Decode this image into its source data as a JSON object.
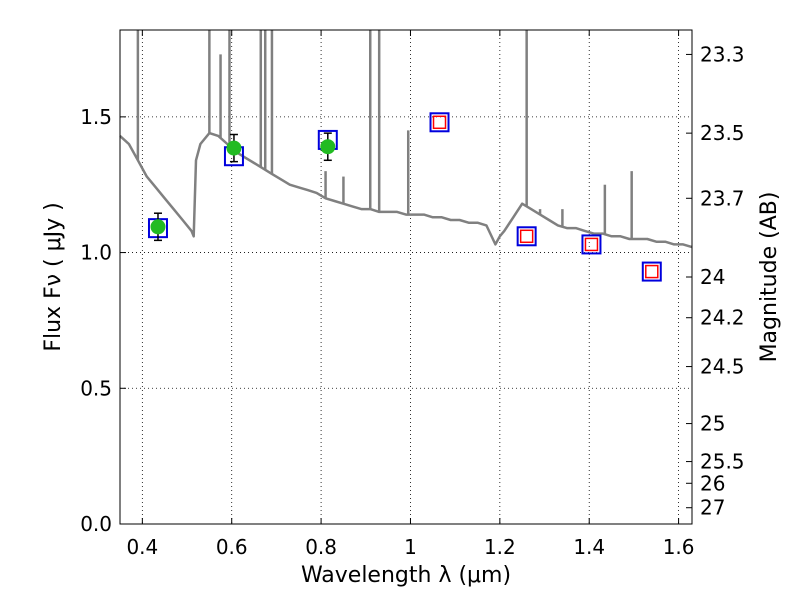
{
  "chart_data": {
    "type": "scatter",
    "title": "",
    "xlabel": "Wavelength  λ (μm)",
    "ylabel": "Flux  Fν  ( μJy )",
    "y2label": "Magnitude (AB)",
    "xlim": [
      0.35,
      1.63
    ],
    "ylim": [
      0.0,
      1.82
    ],
    "x_ticks": [
      0.4,
      0.6,
      0.8,
      1.0,
      1.2,
      1.4,
      1.6
    ],
    "x_tick_labels": [
      "0.4",
      "0.6",
      "0.8",
      "1",
      "1.2",
      "1.4",
      "1.6"
    ],
    "y_ticks": [
      0.0,
      0.5,
      1.0,
      1.5
    ],
    "y_tick_labels": [
      "0.0",
      "0.5",
      "1.0",
      "1.5"
    ],
    "y2_ticks": [
      {
        "flux": 1.73,
        "label": "23.3"
      },
      {
        "flux": 1.44,
        "label": "23.5"
      },
      {
        "flux": 1.2,
        "label": "23.7"
      },
      {
        "flux": 0.91,
        "label": "24"
      },
      {
        "flux": 0.76,
        "label": "24.2"
      },
      {
        "flux": 0.58,
        "label": "24.5"
      },
      {
        "flux": 0.37,
        "label": "25"
      },
      {
        "flux": 0.23,
        "label": "25.5"
      },
      {
        "flux": 0.15,
        "label": "26"
      },
      {
        "flux": 0.06,
        "label": "27"
      }
    ],
    "grid": true,
    "colors": {
      "model": "#808080",
      "observed": "#22bb22",
      "model_box": "#0000dd",
      "synthetic_box": "#ff0000"
    },
    "model_spectrum": {
      "x": [
        0.35,
        0.37,
        0.39,
        0.41,
        0.43,
        0.45,
        0.47,
        0.49,
        0.51,
        0.515,
        0.52,
        0.53,
        0.55,
        0.57,
        0.59,
        0.61,
        0.63,
        0.65,
        0.67,
        0.69,
        0.71,
        0.73,
        0.75,
        0.77,
        0.79,
        0.81,
        0.83,
        0.85,
        0.87,
        0.89,
        0.91,
        0.93,
        0.95,
        0.97,
        0.99,
        1.01,
        1.03,
        1.05,
        1.07,
        1.09,
        1.11,
        1.13,
        1.15,
        1.17,
        1.19,
        1.2,
        1.21,
        1.23,
        1.25,
        1.27,
        1.29,
        1.31,
        1.33,
        1.35,
        1.37,
        1.39,
        1.41,
        1.43,
        1.45,
        1.47,
        1.49,
        1.51,
        1.53,
        1.55,
        1.57,
        1.59,
        1.61,
        1.63
      ],
      "y": [
        1.43,
        1.4,
        1.34,
        1.28,
        1.24,
        1.2,
        1.16,
        1.12,
        1.08,
        1.06,
        1.34,
        1.4,
        1.44,
        1.43,
        1.4,
        1.37,
        1.35,
        1.33,
        1.31,
        1.29,
        1.27,
        1.25,
        1.24,
        1.23,
        1.22,
        1.2,
        1.19,
        1.18,
        1.17,
        1.16,
        1.16,
        1.15,
        1.15,
        1.15,
        1.14,
        1.14,
        1.14,
        1.13,
        1.13,
        1.12,
        1.12,
        1.11,
        1.11,
        1.1,
        1.03,
        1.06,
        1.08,
        1.13,
        1.18,
        1.16,
        1.14,
        1.12,
        1.1,
        1.09,
        1.09,
        1.08,
        1.07,
        1.07,
        1.06,
        1.06,
        1.05,
        1.05,
        1.05,
        1.04,
        1.04,
        1.03,
        1.03,
        1.02
      ],
      "emission_lines": [
        {
          "x": 0.39,
          "peak": 1.82
        },
        {
          "x": 0.55,
          "peak": 1.82
        },
        {
          "x": 0.575,
          "peak": 1.73
        },
        {
          "x": 0.595,
          "peak": 1.82
        },
        {
          "x": 0.665,
          "peak": 1.82
        },
        {
          "x": 0.675,
          "peak": 1.82
        },
        {
          "x": 0.69,
          "peak": 1.82
        },
        {
          "x": 0.81,
          "peak": 1.3
        },
        {
          "x": 0.85,
          "peak": 1.28
        },
        {
          "x": 0.91,
          "peak": 1.82
        },
        {
          "x": 0.93,
          "peak": 1.82
        },
        {
          "x": 0.995,
          "peak": 1.45
        },
        {
          "x": 1.26,
          "peak": 1.82
        },
        {
          "x": 1.29,
          "peak": 1.16
        },
        {
          "x": 1.34,
          "peak": 1.16
        },
        {
          "x": 1.435,
          "peak": 1.25
        },
        {
          "x": 1.495,
          "peak": 1.3
        }
      ]
    },
    "observed_points": {
      "x": [
        0.435,
        0.605,
        0.815
      ],
      "y": [
        1.095,
        1.385,
        1.39
      ],
      "yerr": [
        0.05,
        0.05,
        0.05
      ]
    },
    "model_boxes": {
      "x": [
        0.435,
        0.605,
        0.815,
        1.065,
        1.26,
        1.405,
        1.54
      ],
      "y": [
        1.09,
        1.355,
        1.415,
        1.48,
        1.06,
        1.03,
        0.93
      ]
    },
    "synthetic_boxes": {
      "x": [
        1.065,
        1.26,
        1.405,
        1.54
      ],
      "y": [
        1.48,
        1.06,
        1.03,
        0.93
      ]
    }
  }
}
